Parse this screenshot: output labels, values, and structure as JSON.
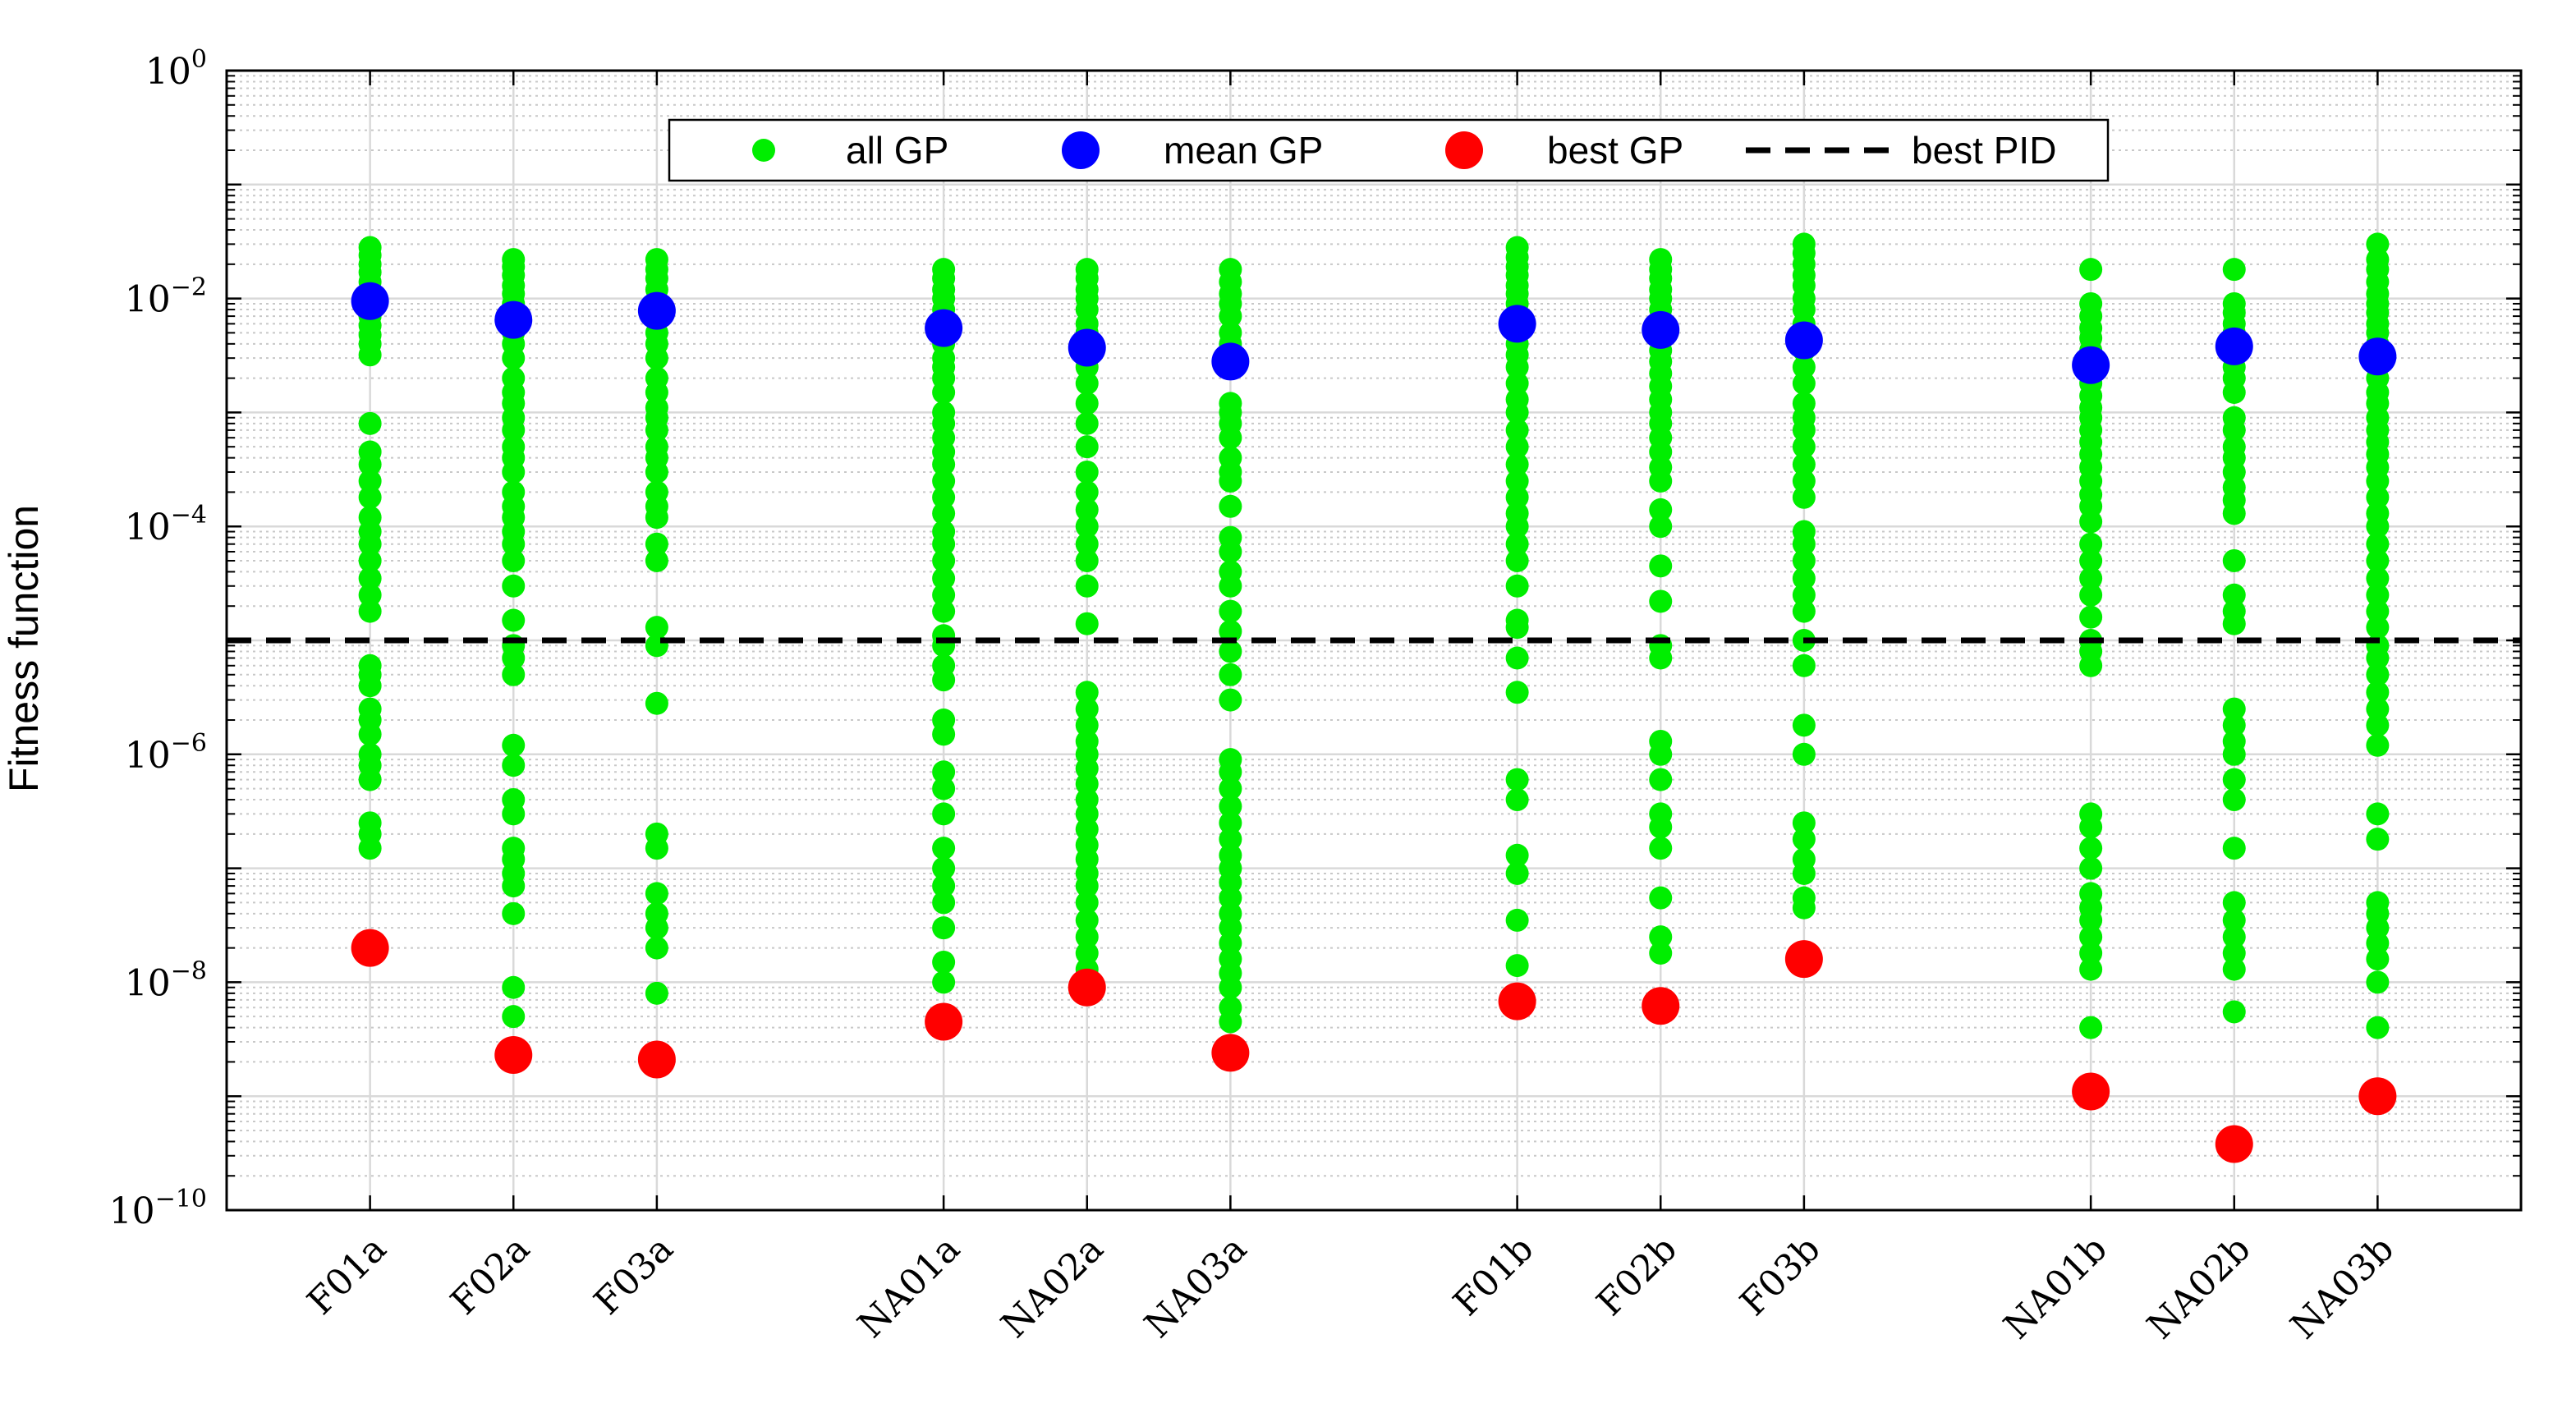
{
  "chart_data": {
    "type": "scatter",
    "yscale": "log",
    "ylabel": "Fitness function",
    "xlabel": "",
    "ylim": [
      1e-10,
      1
    ],
    "y_tick_exponents": [
      0,
      -2,
      -4,
      -6,
      -8,
      -10
    ],
    "grid": true,
    "legend_position": "top-center",
    "categories": [
      "F01a",
      "F02a",
      "F03a",
      "NA01a",
      "NA02a",
      "NA03a",
      "F01b",
      "F02b",
      "F03b",
      "NA01b",
      "NA02b",
      "NA03b"
    ],
    "category_x": [
      1,
      2,
      3,
      5,
      6,
      7,
      9,
      10,
      11,
      13,
      14,
      15
    ],
    "x_range": [
      0,
      16
    ],
    "series": [
      {
        "name": "all GP",
        "marker": "small-dot",
        "color": "#00ee00",
        "values": [
          [
            0.028,
            0.024,
            0.02,
            0.017,
            0.014,
            0.012,
            0.01,
            0.0085,
            0.007,
            0.0058,
            0.0048,
            0.004,
            0.0032,
            0.0008,
            0.00045,
            0.00035,
            0.00025,
            0.00018,
            0.00012,
            9e-05,
            7e-05,
            5e-05,
            3.5e-05,
            2.5e-05,
            1.8e-05,
            6e-06,
            5e-06,
            4e-06,
            2.5e-06,
            2e-06,
            1.5e-06,
            1e-06,
            8e-07,
            6e-07,
            2.5e-07,
            2e-07,
            1.5e-07
          ],
          [
            0.022,
            0.019,
            0.016,
            0.013,
            0.011,
            0.009,
            0.0075,
            0.006,
            0.005,
            0.004,
            0.003,
            0.002,
            0.0015,
            0.0012,
            0.0009,
            0.0007,
            0.0005,
            0.0004,
            0.0003,
            0.0002,
            0.00015,
            0.00012,
            9e-05,
            7e-05,
            5e-05,
            3e-05,
            1.5e-05,
            9e-06,
            7e-06,
            5e-06,
            1.2e-06,
            8e-07,
            4e-07,
            3e-07,
            1.5e-07,
            1.2e-07,
            9e-08,
            7e-08,
            4e-08,
            9e-09,
            5e-09
          ],
          [
            0.022,
            0.018,
            0.015,
            0.012,
            0.009,
            0.007,
            0.005,
            0.004,
            0.003,
            0.002,
            0.0015,
            0.0011,
            0.0009,
            0.0007,
            0.0005,
            0.0004,
            0.0003,
            0.0002,
            0.00015,
            0.00012,
            7e-05,
            5e-05,
            1.3e-05,
            9e-06,
            2.8e-06,
            2e-07,
            1.5e-07,
            6e-08,
            4e-08,
            3e-08,
            2e-08,
            8e-09
          ],
          [
            0.018,
            0.015,
            0.012,
            0.01,
            0.008,
            0.006,
            0.005,
            0.004,
            0.003,
            0.0025,
            0.002,
            0.0015,
            0.001,
            0.0008,
            0.0006,
            0.00045,
            0.00035,
            0.00025,
            0.00018,
            0.00013,
            9e-05,
            7e-05,
            5e-05,
            3.5e-05,
            2.5e-05,
            1.8e-05,
            1.1e-05,
            9e-06,
            6e-06,
            4.5e-06,
            2e-06,
            1.5e-06,
            7e-07,
            5e-07,
            3e-07,
            1.5e-07,
            1e-07,
            7e-08,
            5e-08,
            3e-08,
            1.5e-08,
            1e-08
          ],
          [
            0.018,
            0.015,
            0.012,
            0.01,
            0.008,
            0.006,
            0.005,
            0.004,
            0.003,
            0.0025,
            0.0018,
            0.0012,
            0.0008,
            0.0005,
            0.0003,
            0.0002,
            0.00014,
            0.0001,
            7e-05,
            5e-05,
            3e-05,
            1.4e-05,
            3.5e-06,
            2.5e-06,
            1.8e-06,
            1.3e-06,
            1e-06,
            7.5e-07,
            5.5e-07,
            4e-07,
            3e-07,
            2.2e-07,
            1.6e-07,
            1.2e-07,
            9e-08,
            7e-08,
            5e-08,
            3.5e-08,
            2.5e-08,
            1.8e-08,
            1.3e-08,
            1e-08
          ],
          [
            0.018,
            0.014,
            0.011,
            0.009,
            0.007,
            0.005,
            0.004,
            0.003,
            0.0025,
            0.0012,
            0.001,
            0.0008,
            0.0006,
            0.0004,
            0.0003,
            0.00025,
            0.00015,
            8e-05,
            6e-05,
            4e-05,
            3e-05,
            1.8e-05,
            1.2e-05,
            8e-06,
            5e-06,
            3e-06,
            9e-07,
            7e-07,
            5e-07,
            3.5e-07,
            2.5e-07,
            1.8e-07,
            1.3e-07,
            1e-07,
            7.5e-08,
            5.5e-08,
            4e-08,
            3e-08,
            2.2e-08,
            1.6e-08,
            1.2e-08,
            9e-09,
            6e-09,
            4.5e-09
          ],
          [
            0.028,
            0.023,
            0.019,
            0.016,
            0.013,
            0.011,
            0.009,
            0.0075,
            0.006,
            0.005,
            0.004,
            0.0032,
            0.0025,
            0.0018,
            0.0013,
            0.001,
            0.0007,
            0.0005,
            0.00035,
            0.00025,
            0.00018,
            0.00013,
            0.0001,
            7e-05,
            5e-05,
            3e-05,
            1.5e-05,
            1.3e-05,
            7e-06,
            3.5e-06,
            6e-07,
            4e-07,
            1.3e-07,
            9e-08,
            3.5e-08,
            1.4e-08
          ],
          [
            0.022,
            0.018,
            0.015,
            0.012,
            0.01,
            0.008,
            0.0065,
            0.0053,
            0.0043,
            0.0035,
            0.0028,
            0.0022,
            0.0017,
            0.0013,
            0.001,
            0.0008,
            0.0006,
            0.00045,
            0.00033,
            0.00025,
            0.00014,
            0.0001,
            4.5e-05,
            2.2e-05,
            9e-06,
            7e-06,
            1.3e-06,
            1e-06,
            6e-07,
            3e-07,
            2.3e-07,
            1.5e-07,
            5.5e-08,
            2.5e-08,
            1.8e-08
          ],
          [
            0.03,
            0.025,
            0.02,
            0.016,
            0.013,
            0.01,
            0.008,
            0.006,
            0.0045,
            0.0035,
            0.0025,
            0.0018,
            0.0012,
            0.0009,
            0.0007,
            0.0005,
            0.00035,
            0.00025,
            0.00018,
            9e-05,
            7e-05,
            5e-05,
            3.5e-05,
            2.5e-05,
            1.8e-05,
            1e-05,
            6e-06,
            1.8e-06,
            1e-06,
            2.5e-07,
            1.8e-07,
            1.2e-07,
            9e-08,
            5.5e-08,
            4.5e-08
          ],
          [
            0.018,
            0.009,
            0.007,
            0.0055,
            0.0045,
            0.0035,
            0.0028,
            0.0022,
            0.0018,
            0.0014,
            0.0011,
            0.0009,
            0.0007,
            0.00055,
            0.00043,
            0.00033,
            0.00025,
            0.00019,
            0.00015,
            0.00011,
            7e-05,
            5e-05,
            3.5e-05,
            2.5e-05,
            1.6e-05,
            1e-05,
            8e-06,
            6e-06,
            3e-07,
            2.3e-07,
            1.5e-07,
            1e-07,
            6e-08,
            4.5e-08,
            3.5e-08,
            2.5e-08,
            1.8e-08,
            1.3e-08,
            4e-09
          ],
          [
            0.018,
            0.009,
            0.0075,
            0.006,
            0.005,
            0.004,
            0.0032,
            0.0025,
            0.002,
            0.0015,
            0.0009,
            0.0007,
            0.0005,
            0.0004,
            0.0003,
            0.00022,
            0.00017,
            0.00013,
            5e-05,
            2.5e-05,
            1.8e-05,
            1.4e-05,
            2.5e-06,
            1.8e-06,
            1.3e-06,
            1e-06,
            6e-07,
            4e-07,
            1.5e-07,
            5e-08,
            3.5e-08,
            2.5e-08,
            1.8e-08,
            1.3e-08,
            5.5e-09
          ],
          [
            0.03,
            0.022,
            0.018,
            0.014,
            0.011,
            0.009,
            0.0075,
            0.006,
            0.005,
            0.004,
            0.0032,
            0.0025,
            0.002,
            0.0015,
            0.0012,
            0.0009,
            0.0007,
            0.00055,
            0.00043,
            0.00033,
            0.00025,
            0.00018,
            0.00013,
            0.0001,
            7e-05,
            5e-05,
            3.5e-05,
            2.5e-05,
            1.8e-05,
            1.3e-05,
            9e-06,
            7e-06,
            5e-06,
            3.5e-06,
            2.5e-06,
            1.8e-06,
            1.2e-06,
            3e-07,
            1.8e-07,
            5e-08,
            4e-08,
            3e-08,
            2.2e-08,
            1.6e-08,
            1e-08,
            4e-09
          ]
        ]
      },
      {
        "name": "mean GP",
        "marker": "large-dot",
        "color": "#0000ff",
        "values": [
          0.0095,
          0.0065,
          0.0078,
          0.0055,
          0.0037,
          0.0028,
          0.006,
          0.0053,
          0.0043,
          0.0026,
          0.0038,
          0.0031
        ]
      },
      {
        "name": "best GP",
        "marker": "large-dot",
        "color": "#ff0000",
        "values": [
          2e-08,
          2.3e-09,
          2.1e-09,
          4.5e-09,
          9e-09,
          2.4e-09,
          6.8e-09,
          6.2e-09,
          1.6e-08,
          1.1e-09,
          3.8e-10,
          1e-09
        ]
      },
      {
        "name": "best PID",
        "marker": "dashed-line",
        "color": "#000000",
        "values": [
          1e-05
        ]
      }
    ]
  }
}
